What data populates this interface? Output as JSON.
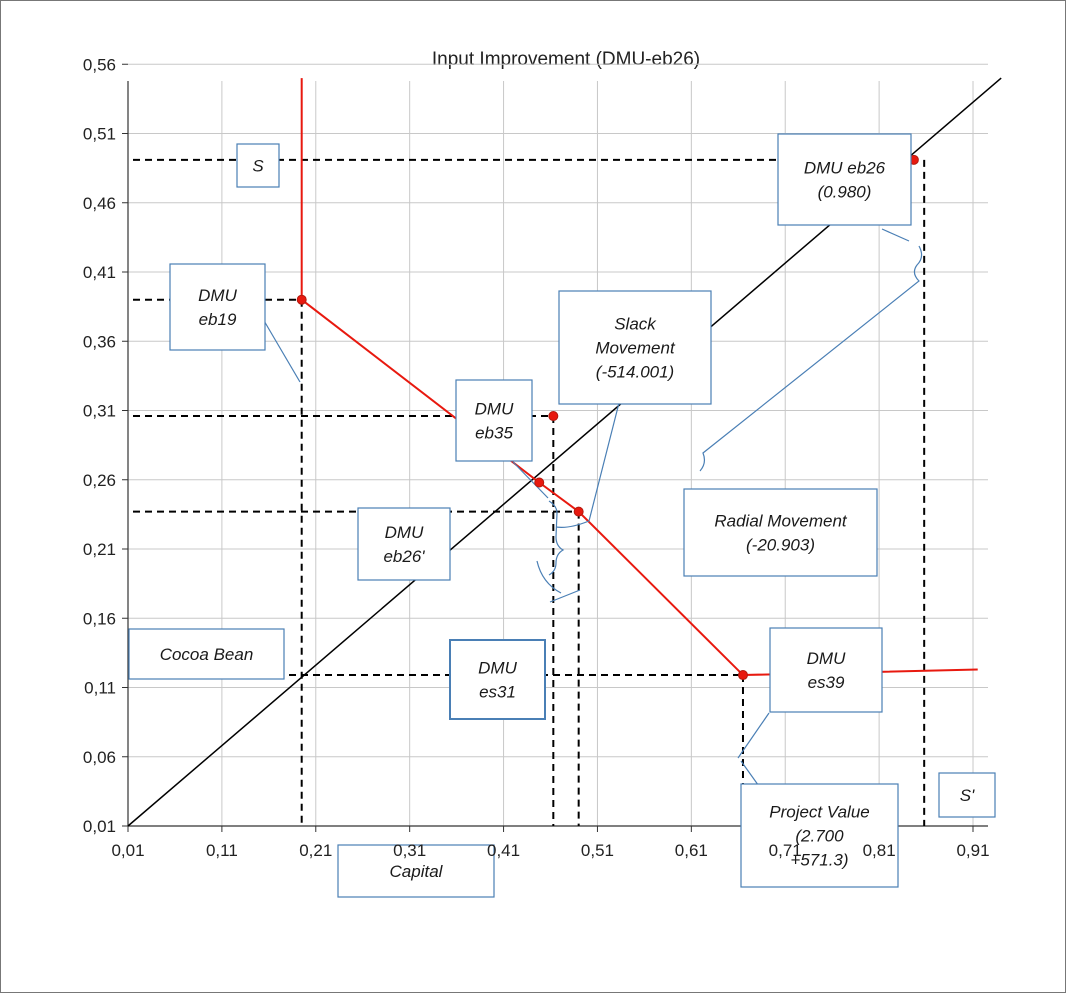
{
  "chart_data": {
    "type": "scatter",
    "title": "Input Improvement (DMU-eb26)",
    "xlabel": "",
    "ylabel": "",
    "xlim": [
      0.01,
      0.96
    ],
    "ylim": [
      0.01,
      0.6
    ],
    "x_ticks": [
      "0,01",
      "0,11",
      "0,21",
      "0,31",
      "0,41",
      "0,51",
      "0,61",
      "0,71",
      "0,81",
      "0,91"
    ],
    "y_ticks": [
      "0,01",
      "0,06",
      "0,11",
      "0,16",
      "0,21",
      "0,26",
      "0,31",
      "0,36",
      "0,41",
      "0,46",
      "0,51",
      "0,56"
    ],
    "grid": true,
    "frontier": [
      [
        0.195,
        0.55
      ],
      [
        0.195,
        0.39
      ],
      [
        0.448,
        0.258
      ],
      [
        0.49,
        0.237
      ],
      [
        0.665,
        0.119
      ],
      [
        0.915,
        0.123
      ]
    ],
    "diagonal": [
      [
        0.01,
        0.01
      ],
      [
        0.94,
        0.55
      ]
    ],
    "points": [
      {
        "name": "DMU eb19",
        "x": 0.195,
        "y": 0.39
      },
      {
        "name": "DMU eb35",
        "x": 0.463,
        "y": 0.306
      },
      {
        "name": "DMU eb26'",
        "x": 0.448,
        "y": 0.258
      },
      {
        "name": "DMU es31",
        "x": 0.49,
        "y": 0.237
      },
      {
        "name": "DMU es39",
        "x": 0.665,
        "y": 0.119
      },
      {
        "name": "DMU eb26 (0.980)",
        "x": 0.847,
        "y": 0.491
      }
    ],
    "dashed_h": [
      0.39,
      0.306,
      0.237,
      0.119,
      0.491
    ],
    "dashed_v": [
      0.195,
      0.463,
      0.49,
      0.665,
      0.858
    ],
    "annotations": [
      {
        "id": "S",
        "lines": [
          "S"
        ]
      },
      {
        "id": "S2",
        "lines": [
          "S'"
        ]
      },
      {
        "id": "eb19",
        "lines": [
          "DMU",
          "eb19"
        ]
      },
      {
        "id": "eb35",
        "lines": [
          "DMU",
          "eb35"
        ]
      },
      {
        "id": "eb26p",
        "lines": [
          "DMU",
          "eb26'"
        ]
      },
      {
        "id": "es31",
        "lines": [
          "DMU",
          "es31"
        ]
      },
      {
        "id": "es39",
        "lines": [
          "DMU",
          "es39"
        ]
      },
      {
        "id": "eb26",
        "lines": [
          "DMU eb26",
          "(0.980)"
        ]
      },
      {
        "id": "slack",
        "lines": [
          "Slack",
          "Movement",
          "(-514.001)"
        ]
      },
      {
        "id": "radial",
        "lines": [
          "Radial Movement",
          "(-20.903)"
        ]
      },
      {
        "id": "proj",
        "lines": [
          "Project Value",
          "(2.700",
          "+571.3)"
        ]
      },
      {
        "id": "cocoa",
        "lines": [
          "Cocoa Bean"
        ]
      },
      {
        "id": "capital",
        "lines": [
          "Capital"
        ]
      }
    ],
    "colors": {
      "frontier": "#e8190f",
      "point": "#e8190f",
      "diagonal": "#000000",
      "dashed": "#000000",
      "box_border": "#4a7fb5",
      "grid": "#c8c8c8"
    }
  }
}
